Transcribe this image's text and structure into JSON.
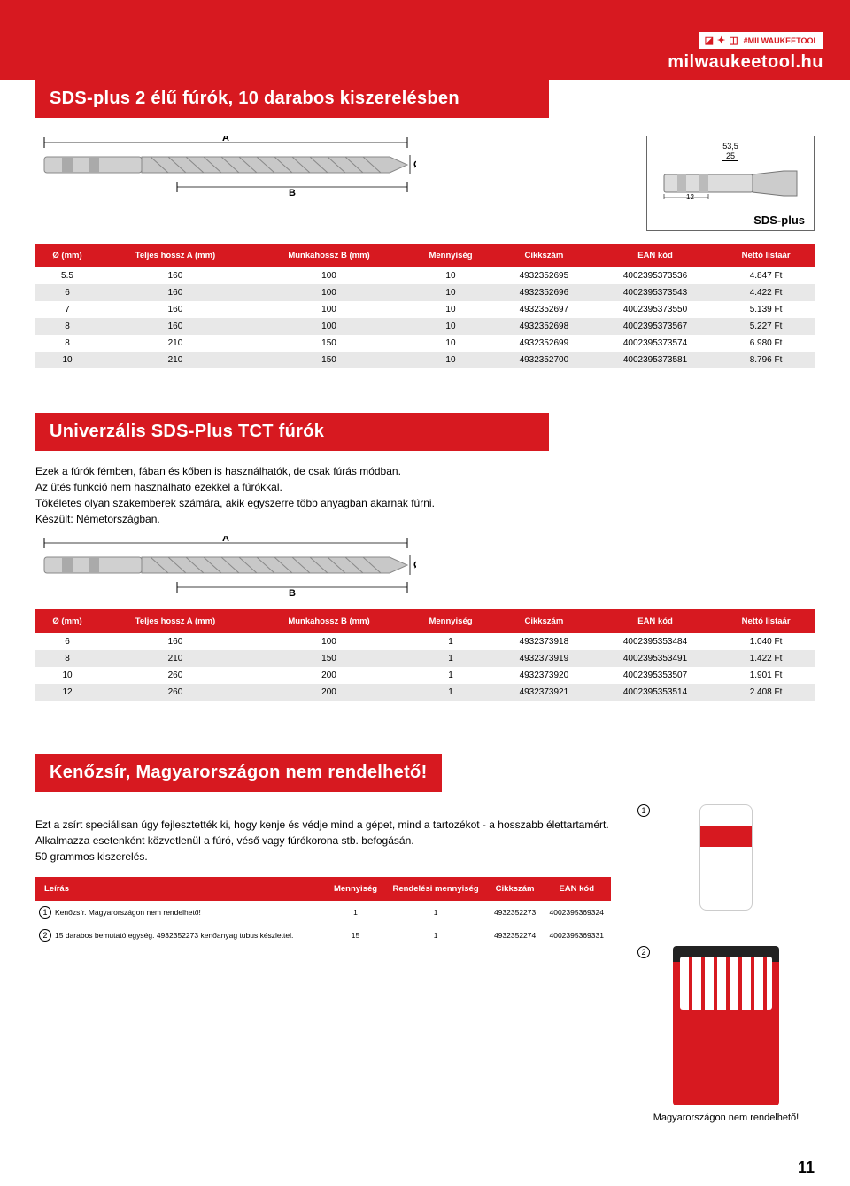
{
  "header": {
    "hashtag": "#MILWAUKEETOOL",
    "domain": "milwaukeetool.hu"
  },
  "section1": {
    "title": "SDS-plus 2 élű fúrók, 10 darabos kiszerelésben",
    "sds_dims": {
      "w1": "53,5",
      "w2": "25",
      "h": "12",
      "label": "SDS-plus"
    },
    "columns": [
      "Ø (mm)",
      "Teljes hossz  A (mm)",
      "Munkahossz B (mm)",
      "Mennyiség",
      "Cikkszám",
      "EAN kód",
      "Nettó listaár"
    ],
    "rows": [
      [
        "5.5",
        "160",
        "100",
        "10",
        "4932352695",
        "4002395373536",
        "4.847 Ft"
      ],
      [
        "6",
        "160",
        "100",
        "10",
        "4932352696",
        "4002395373543",
        "4.422 Ft"
      ],
      [
        "7",
        "160",
        "100",
        "10",
        "4932352697",
        "4002395373550",
        "5.139 Ft"
      ],
      [
        "8",
        "160",
        "100",
        "10",
        "4932352698",
        "4002395373567",
        "5.227 Ft"
      ],
      [
        "8",
        "210",
        "150",
        "10",
        "4932352699",
        "4002395373574",
        "6.980 Ft"
      ],
      [
        "10",
        "210",
        "150",
        "10",
        "4932352700",
        "4002395373581",
        "8.796 Ft"
      ]
    ]
  },
  "section2": {
    "title": "Univerzális SDS-Plus TCT fúrók",
    "desc": [
      "Ezek a fúrók fémben, fában és kőben is használhatók, de csak fúrás módban.",
      "Az ütés funkció nem használható ezekkel a fúrókkal.",
      "Tökéletes olyan szakemberek számára, akik egyszerre több anyagban akarnak fúrni.",
      "Készült: Németországban."
    ],
    "columns": [
      "Ø (mm)",
      "Teljes hossz  A (mm)",
      "Munkahossz B (mm)",
      "Mennyiség",
      "Cikkszám",
      "EAN kód",
      "Nettó listaár"
    ],
    "rows": [
      [
        "6",
        "160",
        "100",
        "1",
        "4932373918",
        "4002395353484",
        "1.040 Ft"
      ],
      [
        "8",
        "210",
        "150",
        "1",
        "4932373919",
        "4002395353491",
        "1.422 Ft"
      ],
      [
        "10",
        "260",
        "200",
        "1",
        "4932373920",
        "4002395353507",
        "1.901 Ft"
      ],
      [
        "12",
        "260",
        "200",
        "1",
        "4932373921",
        "4002395353514",
        "2.408 Ft"
      ]
    ]
  },
  "section3": {
    "title": "Kenőzsír, Magyarországon nem rendelhető!",
    "desc": [
      "Ezt a zsírt speciálisan úgy fejlesztették ki, hogy kenje és védje mind a gépet, mind a tartozékot - a hosszabb élettartamért.",
      "Alkalmazza esetenként közvetlenül a fúró, véső vagy fúrókorona stb. befogásán.",
      "50 grammos kiszerelés."
    ],
    "columns": [
      "Leírás",
      "Mennyiség",
      "Rendelési mennyiség",
      "Cikkszám",
      "EAN kód"
    ],
    "rows": [
      {
        "num": "1",
        "cells": [
          "Kenőzsír. Magyarországon nem rendelhető!",
          "1",
          "1",
          "4932352273",
          "4002395369324"
        ]
      },
      {
        "num": "2",
        "cells": [
          "15 darabos bemutató egység. 4932352273 kenőanyag tubus készlettel.",
          "15",
          "1",
          "4932352274",
          "4002395369331"
        ]
      }
    ],
    "markers": {
      "m1": "1",
      "m2": "2"
    },
    "caption": "Magyarországon nem rendelhető!"
  },
  "page_number": "11",
  "colors": {
    "brand_red": "#d71920",
    "row_grey": "#e8e8e8"
  }
}
